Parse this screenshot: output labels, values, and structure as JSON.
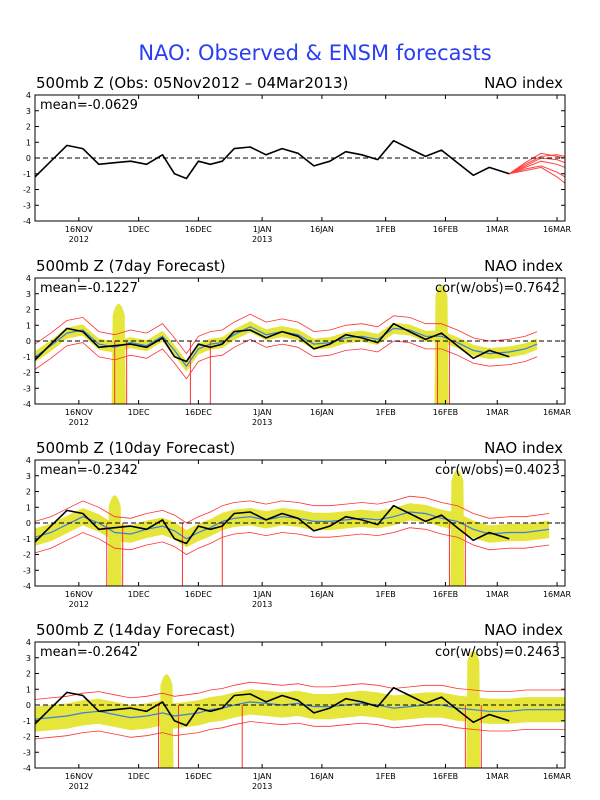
{
  "title": "NAO: Observed & ENSM forecasts",
  "colors": {
    "title": "#2a3ff0",
    "observed": "#000000",
    "ensemble_mean": "#3a7fe0",
    "members": "#ff3030",
    "spread": "#e5e53a",
    "forecast_fan": "#ff4040"
  },
  "chart_data": [
    {
      "type": "line",
      "title": "500mb Z (Obs: 05Nov2012 – 04Mar2013)",
      "right_label": "NAO index",
      "mean_label": "mean=-0.0629",
      "cor_label": "",
      "ylim": [
        -4,
        4
      ],
      "yticks": [
        -4,
        -3,
        -2,
        -1,
        0,
        1,
        2,
        3,
        4
      ],
      "xlim": [
        "2012-11-05",
        "2013-03-18"
      ],
      "xticks": [
        {
          "date": "2012-11-16",
          "label": "16NOV",
          "sub": "2012"
        },
        {
          "date": "2012-12-01",
          "label": "1DEC",
          "sub": ""
        },
        {
          "date": "2012-12-16",
          "label": "16DEC",
          "sub": ""
        },
        {
          "date": "2013-01-01",
          "label": "1JAN",
          "sub": "2013"
        },
        {
          "date": "2013-01-16",
          "label": "16JAN",
          "sub": ""
        },
        {
          "date": "2013-02-01",
          "label": "1FEB",
          "sub": ""
        },
        {
          "date": "2013-02-16",
          "label": "16FEB",
          "sub": ""
        },
        {
          "date": "2013-03-01",
          "label": "1MAR",
          "sub": ""
        },
        {
          "date": "2013-03-16",
          "label": "16MAR",
          "sub": ""
        }
      ],
      "observed": {
        "x": [
          "2012-11-05",
          "2012-11-09",
          "2012-11-13",
          "2012-11-17",
          "2012-11-21",
          "2012-11-25",
          "2012-11-29",
          "2012-12-03",
          "2012-12-07",
          "2012-12-10",
          "2012-12-13",
          "2012-12-16",
          "2012-12-19",
          "2012-12-22",
          "2012-12-25",
          "2012-12-29",
          "2013-01-02",
          "2013-01-06",
          "2013-01-10",
          "2013-01-14",
          "2013-01-18",
          "2013-01-22",
          "2013-01-26",
          "2013-01-30",
          "2013-02-03",
          "2013-02-07",
          "2013-02-11",
          "2013-02-15",
          "2013-02-19",
          "2013-02-23",
          "2013-02-27",
          "2013-03-04"
        ],
        "y": [
          -1.2,
          -0.2,
          0.8,
          0.6,
          -0.4,
          -0.3,
          -0.2,
          -0.4,
          0.2,
          -1.0,
          -1.3,
          -0.2,
          -0.4,
          -0.2,
          0.6,
          0.7,
          0.2,
          0.6,
          0.3,
          -0.5,
          -0.2,
          0.4,
          0.2,
          -0.1,
          1.1,
          0.6,
          0.1,
          0.5,
          -0.3,
          -1.1,
          -0.6,
          -1.0
        ]
      },
      "forecast_fan": {
        "x": [
          "2013-03-04",
          "2013-03-08",
          "2013-03-12",
          "2013-03-16",
          "2013-03-18"
        ],
        "members": [
          [
            -1.0,
            -0.4,
            0.1,
            0.2,
            0.1
          ],
          [
            -1.0,
            -0.6,
            -0.2,
            -0.4,
            -0.6
          ],
          [
            -1.0,
            -0.7,
            -0.5,
            -0.9,
            -1.2
          ],
          [
            -1.0,
            -0.5,
            0.0,
            -0.1,
            -0.3
          ],
          [
            -1.0,
            -0.8,
            -0.6,
            -1.2,
            -1.6
          ],
          [
            -1.0,
            -0.3,
            0.3,
            0.1,
            0.0
          ]
        ]
      }
    },
    {
      "type": "line",
      "title": "500mb Z (7day Forecast)",
      "right_label": "NAO index",
      "mean_label": "mean=-0.1227",
      "cor_label": "cor(w/obs)=0.7642",
      "ylim": [
        -4,
        4
      ],
      "yticks": [
        -4,
        -3,
        -2,
        -1,
        0,
        1,
        2,
        3,
        4
      ],
      "xlim": [
        "2012-11-05",
        "2013-03-18"
      ],
      "xticks": [
        {
          "date": "2012-11-16",
          "label": "16NOV",
          "sub": "2012"
        },
        {
          "date": "2012-12-01",
          "label": "1DEC",
          "sub": ""
        },
        {
          "date": "2012-12-16",
          "label": "16DEC",
          "sub": ""
        },
        {
          "date": "2013-01-01",
          "label": "1JAN",
          "sub": "2013"
        },
        {
          "date": "2013-01-16",
          "label": "16JAN",
          "sub": ""
        },
        {
          "date": "2013-02-01",
          "label": "1FEB",
          "sub": ""
        },
        {
          "date": "2013-02-16",
          "label": "16FEB",
          "sub": ""
        },
        {
          "date": "2013-03-01",
          "label": "1MAR",
          "sub": ""
        },
        {
          "date": "2013-03-16",
          "label": "16MAR",
          "sub": ""
        }
      ],
      "observed": {
        "x": [
          "2012-11-05",
          "2012-11-09",
          "2012-11-13",
          "2012-11-17",
          "2012-11-21",
          "2012-11-25",
          "2012-11-29",
          "2012-12-03",
          "2012-12-07",
          "2012-12-10",
          "2012-12-13",
          "2012-12-16",
          "2012-12-19",
          "2012-12-22",
          "2012-12-25",
          "2012-12-29",
          "2013-01-02",
          "2013-01-06",
          "2013-01-10",
          "2013-01-14",
          "2013-01-18",
          "2013-01-22",
          "2013-01-26",
          "2013-01-30",
          "2013-02-03",
          "2013-02-07",
          "2013-02-11",
          "2013-02-15",
          "2013-02-19",
          "2013-02-23",
          "2013-02-27",
          "2013-03-04"
        ],
        "y": [
          -1.2,
          -0.2,
          0.8,
          0.6,
          -0.4,
          -0.3,
          -0.2,
          -0.4,
          0.2,
          -1.0,
          -1.3,
          -0.2,
          -0.4,
          -0.2,
          0.6,
          0.7,
          0.2,
          0.6,
          0.3,
          -0.5,
          -0.2,
          0.4,
          0.2,
          -0.1,
          1.1,
          0.6,
          0.1,
          0.5,
          -0.3,
          -1.1,
          -0.6,
          -1.0
        ]
      },
      "ensemble_mean": {
        "x": [
          "2012-11-05",
          "2012-11-09",
          "2012-11-13",
          "2012-11-17",
          "2012-11-21",
          "2012-11-25",
          "2012-11-29",
          "2012-12-03",
          "2012-12-07",
          "2012-12-10",
          "2012-12-13",
          "2012-12-16",
          "2012-12-19",
          "2012-12-22",
          "2012-12-25",
          "2012-12-29",
          "2013-01-02",
          "2013-01-06",
          "2013-01-10",
          "2013-01-14",
          "2013-01-18",
          "2013-01-22",
          "2013-01-26",
          "2013-01-30",
          "2013-02-03",
          "2013-02-07",
          "2013-02-11",
          "2013-02-15",
          "2013-02-19",
          "2013-02-23",
          "2013-02-27",
          "2013-03-04",
          "2013-03-08",
          "2013-03-11"
        ],
        "y": [
          -1.0,
          -0.3,
          0.5,
          0.7,
          -0.2,
          -0.4,
          -0.1,
          -0.3,
          0.3,
          -0.6,
          -1.6,
          -0.5,
          -0.2,
          -0.1,
          0.4,
          0.9,
          0.4,
          0.6,
          0.4,
          -0.2,
          -0.1,
          0.2,
          0.3,
          0.1,
          0.8,
          0.7,
          0.3,
          0.3,
          -0.1,
          -0.6,
          -0.8,
          -0.7,
          -0.5,
          -0.2
        ]
      },
      "spread_width": 0.35,
      "spikes": [
        {
          "x": "2012-11-26",
          "y0": -4,
          "y1": 2.8
        },
        {
          "x": "2013-02-15",
          "y0": -4,
          "y1": 4
        }
      ],
      "member_drops": [
        "2012-11-25",
        "2012-11-28",
        "2012-12-14",
        "2012-12-19",
        "2013-02-14",
        "2013-02-17"
      ]
    },
    {
      "type": "line",
      "title": "500mb Z (10day Forecast)",
      "right_label": "NAO index",
      "mean_label": "mean=-0.2342",
      "cor_label": "cor(w/obs)=0.4023",
      "ylim": [
        -4,
        4
      ],
      "yticks": [
        -4,
        -3,
        -2,
        -1,
        0,
        1,
        2,
        3,
        4
      ],
      "xlim": [
        "2012-11-05",
        "2013-03-18"
      ],
      "xticks": [
        {
          "date": "2012-11-16",
          "label": "16NOV",
          "sub": "2012"
        },
        {
          "date": "2012-12-01",
          "label": "1DEC",
          "sub": ""
        },
        {
          "date": "2012-12-16",
          "label": "16DEC",
          "sub": ""
        },
        {
          "date": "2013-01-01",
          "label": "1JAN",
          "sub": "2013"
        },
        {
          "date": "2013-01-16",
          "label": "16JAN",
          "sub": ""
        },
        {
          "date": "2013-02-01",
          "label": "1FEB",
          "sub": ""
        },
        {
          "date": "2013-02-16",
          "label": "16FEB",
          "sub": ""
        },
        {
          "date": "2013-03-01",
          "label": "1MAR",
          "sub": ""
        },
        {
          "date": "2013-03-16",
          "label": "16MAR",
          "sub": ""
        }
      ],
      "observed": {
        "x": [
          "2012-11-05",
          "2012-11-09",
          "2012-11-13",
          "2012-11-17",
          "2012-11-21",
          "2012-11-25",
          "2012-11-29",
          "2012-12-03",
          "2012-12-07",
          "2012-12-10",
          "2012-12-13",
          "2012-12-16",
          "2012-12-19",
          "2012-12-22",
          "2012-12-25",
          "2012-12-29",
          "2013-01-02",
          "2013-01-06",
          "2013-01-10",
          "2013-01-14",
          "2013-01-18",
          "2013-01-22",
          "2013-01-26",
          "2013-01-30",
          "2013-02-03",
          "2013-02-07",
          "2013-02-11",
          "2013-02-15",
          "2013-02-19",
          "2013-02-23",
          "2013-02-27",
          "2013-03-04"
        ],
        "y": [
          -1.2,
          -0.2,
          0.8,
          0.6,
          -0.4,
          -0.3,
          -0.2,
          -0.4,
          0.2,
          -1.0,
          -1.3,
          -0.2,
          -0.4,
          -0.2,
          0.6,
          0.7,
          0.2,
          0.6,
          0.3,
          -0.5,
          -0.2,
          0.4,
          0.2,
          -0.1,
          1.1,
          0.6,
          0.1,
          0.5,
          -0.3,
          -1.1,
          -0.6,
          -1.0
        ]
      },
      "ensemble_mean": {
        "x": [
          "2012-11-05",
          "2012-11-09",
          "2012-11-13",
          "2012-11-17",
          "2012-11-21",
          "2012-11-25",
          "2012-11-29",
          "2012-12-03",
          "2012-12-07",
          "2012-12-10",
          "2012-12-13",
          "2012-12-16",
          "2012-12-19",
          "2012-12-22",
          "2012-12-25",
          "2012-12-29",
          "2013-01-02",
          "2013-01-06",
          "2013-01-10",
          "2013-01-14",
          "2013-01-18",
          "2013-01-22",
          "2013-01-26",
          "2013-01-30",
          "2013-02-03",
          "2013-02-07",
          "2013-02-11",
          "2013-02-15",
          "2013-02-19",
          "2013-02-23",
          "2013-02-27",
          "2013-03-04",
          "2013-03-08",
          "2013-03-14"
        ],
        "y": [
          -0.9,
          -0.6,
          -0.1,
          0.4,
          0.0,
          -0.6,
          -0.7,
          -0.4,
          -0.2,
          -0.5,
          -1.0,
          -0.6,
          -0.3,
          0.1,
          0.3,
          0.4,
          0.2,
          0.4,
          0.3,
          0.1,
          0.1,
          0.2,
          0.3,
          0.2,
          0.4,
          0.7,
          0.6,
          0.3,
          0.1,
          -0.4,
          -0.7,
          -0.6,
          -0.6,
          -0.4
        ]
      },
      "spread_width": 0.55,
      "spikes": [
        {
          "x": "2012-11-25",
          "y0": -4,
          "y1": 2.2
        },
        {
          "x": "2013-02-19",
          "y0": -4,
          "y1": 3.8
        }
      ],
      "member_drops": [
        "2012-11-23",
        "2012-11-27",
        "2012-12-12",
        "2012-12-22",
        "2013-02-17",
        "2013-02-21"
      ]
    },
    {
      "type": "line",
      "title": "500mb Z (14day Forecast)",
      "right_label": "NAO index",
      "mean_label": "mean=-0.2642",
      "cor_label": "cor(w/obs)=0.2463",
      "ylim": [
        -4,
        4
      ],
      "yticks": [
        -4,
        -3,
        -2,
        -1,
        0,
        1,
        2,
        3,
        4
      ],
      "xlim": [
        "2012-11-05",
        "2013-03-18"
      ],
      "xticks": [
        {
          "date": "2012-11-16",
          "label": "16NOV",
          "sub": "2012"
        },
        {
          "date": "2012-12-01",
          "label": "1DEC",
          "sub": ""
        },
        {
          "date": "2012-12-16",
          "label": "16DEC",
          "sub": ""
        },
        {
          "date": "2013-01-01",
          "label": "1JAN",
          "sub": "2013"
        },
        {
          "date": "2013-01-16",
          "label": "16JAN",
          "sub": ""
        },
        {
          "date": "2013-02-01",
          "label": "1FEB",
          "sub": ""
        },
        {
          "date": "2013-02-16",
          "label": "16FEB",
          "sub": ""
        },
        {
          "date": "2013-03-01",
          "label": "1MAR",
          "sub": ""
        },
        {
          "date": "2013-03-16",
          "label": "16MAR",
          "sub": ""
        }
      ],
      "observed": {
        "x": [
          "2012-11-05",
          "2012-11-09",
          "2012-11-13",
          "2012-11-17",
          "2012-11-21",
          "2012-11-25",
          "2012-11-29",
          "2012-12-03",
          "2012-12-07",
          "2012-12-10",
          "2012-12-13",
          "2012-12-16",
          "2012-12-19",
          "2012-12-22",
          "2012-12-25",
          "2012-12-29",
          "2013-01-02",
          "2013-01-06",
          "2013-01-10",
          "2013-01-14",
          "2013-01-18",
          "2013-01-22",
          "2013-01-26",
          "2013-01-30",
          "2013-02-03",
          "2013-02-07",
          "2013-02-11",
          "2013-02-15",
          "2013-02-19",
          "2013-02-23",
          "2013-02-27",
          "2013-03-04"
        ],
        "y": [
          -1.2,
          -0.2,
          0.8,
          0.6,
          -0.4,
          -0.3,
          -0.2,
          -0.4,
          0.2,
          -1.0,
          -1.3,
          -0.2,
          -0.4,
          -0.2,
          0.6,
          0.7,
          0.2,
          0.6,
          0.3,
          -0.5,
          -0.2,
          0.4,
          0.2,
          -0.1,
          1.1,
          0.6,
          0.1,
          0.5,
          -0.3,
          -1.1,
          -0.6,
          -1.0
        ]
      },
      "ensemble_mean": {
        "x": [
          "2012-11-05",
          "2012-11-09",
          "2012-11-13",
          "2012-11-17",
          "2012-11-21",
          "2012-11-25",
          "2012-11-29",
          "2012-12-03",
          "2012-12-07",
          "2012-12-10",
          "2012-12-13",
          "2012-12-16",
          "2012-12-19",
          "2012-12-22",
          "2012-12-25",
          "2012-12-29",
          "2013-01-02",
          "2013-01-06",
          "2013-01-10",
          "2013-01-14",
          "2013-01-18",
          "2013-01-22",
          "2013-01-26",
          "2013-01-30",
          "2013-02-03",
          "2013-02-07",
          "2013-02-11",
          "2013-02-15",
          "2013-02-19",
          "2013-02-23",
          "2013-02-27",
          "2013-03-04",
          "2013-03-08",
          "2013-03-18"
        ],
        "y": [
          -0.9,
          -0.8,
          -0.7,
          -0.5,
          -0.4,
          -0.6,
          -0.8,
          -0.7,
          -0.5,
          -0.7,
          -0.6,
          -0.5,
          -0.3,
          -0.2,
          0.0,
          0.2,
          0.1,
          0.0,
          0.1,
          -0.1,
          -0.1,
          0.0,
          0.1,
          0.0,
          -0.2,
          -0.1,
          0.0,
          0.0,
          -0.2,
          -0.3,
          -0.4,
          -0.4,
          -0.3,
          -0.3
        ]
      },
      "spread_width": 0.8,
      "spikes": [
        {
          "x": "2012-12-08",
          "y0": -4,
          "y1": 2.4
        },
        {
          "x": "2013-02-23",
          "y0": -4,
          "y1": 3.9
        }
      ],
      "member_drops": [
        "2012-12-06",
        "2012-12-11",
        "2012-12-27",
        "2013-02-21",
        "2013-02-25"
      ]
    }
  ]
}
